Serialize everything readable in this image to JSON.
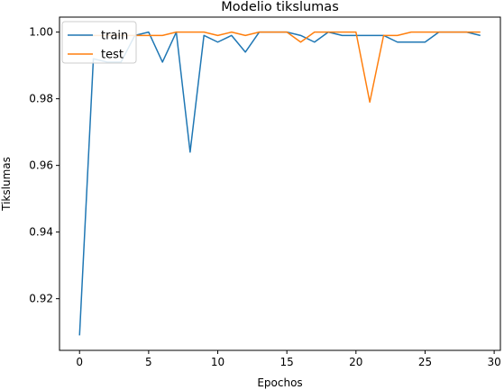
{
  "chart_data": {
    "type": "line",
    "title": "Modelio tikslumas",
    "xlabel": "Epochos",
    "ylabel": "Tikslumas",
    "xlim": [
      -1.45,
      30.45
    ],
    "ylim": [
      0.9045,
      1.0045
    ],
    "xticks": [
      0,
      5,
      10,
      15,
      20,
      25,
      30
    ],
    "yticks": [
      0.92,
      0.94,
      0.96,
      0.98,
      1.0
    ],
    "ytick_labels": [
      "0.92",
      "0.94",
      "0.96",
      "0.98",
      "1.00"
    ],
    "grid": false,
    "legend_position": "top-left",
    "x": [
      0,
      1,
      2,
      3,
      4,
      5,
      6,
      7,
      8,
      9,
      10,
      11,
      12,
      13,
      14,
      15,
      16,
      17,
      18,
      19,
      20,
      21,
      22,
      23,
      24,
      25,
      26,
      27,
      28,
      29
    ],
    "series": [
      {
        "name": "train",
        "color": "#1f77b4",
        "values": [
          0.909,
          0.992,
          0.991,
          0.991,
          0.999,
          1.0,
          0.991,
          1.0,
          0.964,
          0.999,
          0.997,
          0.999,
          0.994,
          1.0,
          1.0,
          1.0,
          0.999,
          0.997,
          1.0,
          0.999,
          0.999,
          0.999,
          0.999,
          0.997,
          0.997,
          0.997,
          1.0,
          1.0,
          1.0,
          0.999
        ]
      },
      {
        "name": "test",
        "color": "#ff7f0e",
        "values": [
          0.999,
          0.999,
          0.999,
          0.999,
          0.999,
          0.999,
          0.999,
          1.0,
          1.0,
          1.0,
          0.999,
          1.0,
          0.999,
          1.0,
          1.0,
          1.0,
          0.997,
          1.0,
          1.0,
          1.0,
          1.0,
          0.979,
          0.999,
          0.999,
          1.0,
          1.0,
          1.0,
          1.0,
          1.0,
          1.0
        ]
      }
    ]
  }
}
